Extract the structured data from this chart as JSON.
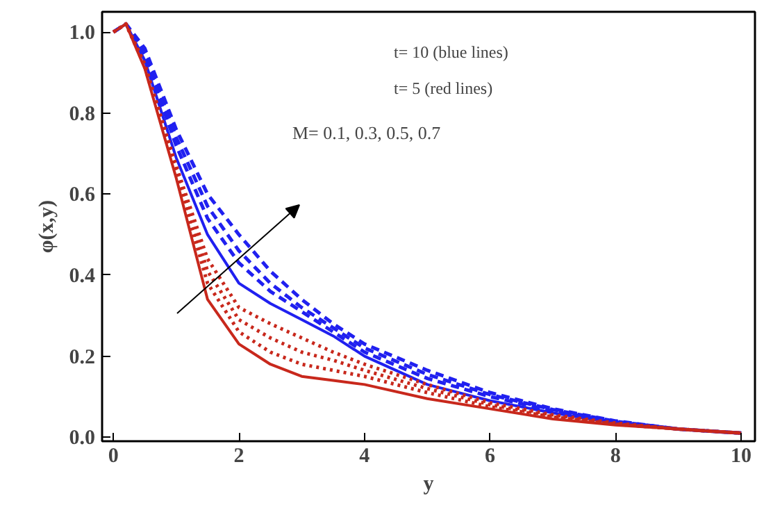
{
  "chart_data": {
    "type": "line",
    "xlabel": "y",
    "ylabel": "φ(x,y)",
    "x": [
      0,
      0.2,
      0.5,
      1,
      1.5,
      2,
      2.5,
      3,
      3.5,
      4,
      5,
      6,
      7,
      8,
      9,
      10
    ],
    "xlim": [
      -0.18,
      10.22
    ],
    "ylim": [
      -0.01,
      1.05
    ],
    "xticks": [
      0,
      2,
      4,
      6,
      8,
      10
    ],
    "yticks": [
      {
        "value": 0,
        "label": "0.0"
      },
      0.2,
      0.4,
      0.6,
      0.8,
      {
        "value": 1,
        "label": "1.0"
      }
    ],
    "grid": false,
    "series": [
      {
        "color": "#2020f0",
        "line_style": "solid",
        "values": [
          1.0,
          1.02,
          0.93,
          0.69,
          0.5,
          0.38,
          0.33,
          0.29,
          0.25,
          0.2,
          0.13,
          0.09,
          0.06,
          0.035,
          0.02,
          0.01
        ]
      },
      {
        "color": "#2020f0",
        "line_style": "dashed",
        "values": [
          1.0,
          1.02,
          0.94,
          0.72,
          0.54,
          0.43,
          0.36,
          0.31,
          0.26,
          0.21,
          0.145,
          0.1,
          0.065,
          0.037,
          0.02,
          0.01
        ]
      },
      {
        "color": "#2020f0",
        "line_style": "dashed",
        "values": [
          1.0,
          1.02,
          0.95,
          0.74,
          0.57,
          0.46,
          0.38,
          0.32,
          0.27,
          0.22,
          0.155,
          0.105,
          0.068,
          0.039,
          0.02,
          0.01
        ]
      },
      {
        "color": "#2020f0",
        "line_style": "dashed",
        "values": [
          1.0,
          1.02,
          0.96,
          0.76,
          0.6,
          0.5,
          0.41,
          0.34,
          0.28,
          0.23,
          0.165,
          0.11,
          0.07,
          0.04,
          0.02,
          0.01
        ]
      },
      {
        "color": "#c8281c",
        "line_style": "solid",
        "values": [
          1.0,
          1.02,
          0.91,
          0.64,
          0.34,
          0.23,
          0.18,
          0.15,
          0.14,
          0.13,
          0.095,
          0.07,
          0.045,
          0.03,
          0.02,
          0.01
        ]
      },
      {
        "color": "#c8281c",
        "line_style": "dotted",
        "values": [
          1.0,
          1.02,
          0.915,
          0.65,
          0.38,
          0.26,
          0.21,
          0.18,
          0.165,
          0.15,
          0.11,
          0.075,
          0.05,
          0.032,
          0.02,
          0.01
        ]
      },
      {
        "color": "#c8281c",
        "line_style": "dotted",
        "values": [
          1.0,
          1.02,
          0.92,
          0.66,
          0.41,
          0.29,
          0.245,
          0.21,
          0.19,
          0.165,
          0.12,
          0.08,
          0.052,
          0.033,
          0.02,
          0.01
        ]
      },
      {
        "color": "#c8281c",
        "line_style": "dotted",
        "values": [
          1.0,
          1.02,
          0.92,
          0.67,
          0.44,
          0.32,
          0.28,
          0.245,
          0.21,
          0.18,
          0.13,
          0.085,
          0.055,
          0.035,
          0.02,
          0.01
        ]
      }
    ],
    "annotations": [
      "t= 10 (blue lines)",
      "t= 5 (red lines)",
      "M= 0.1, 0.3, 0.5, 0.7"
    ]
  }
}
